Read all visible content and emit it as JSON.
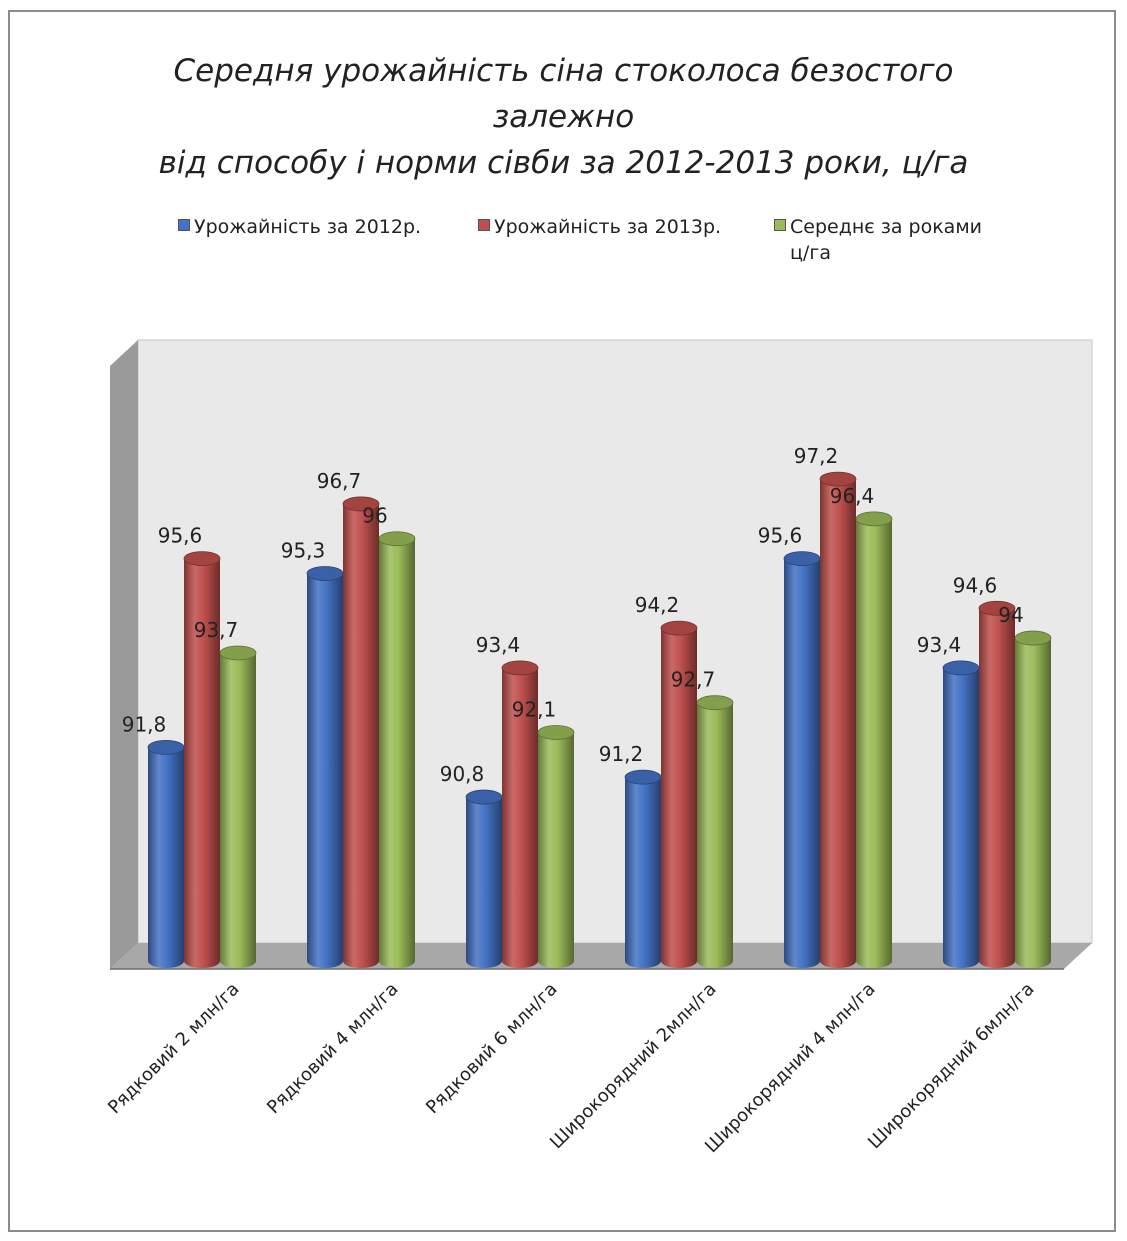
{
  "chart_data": {
    "type": "bar",
    "title_lines": [
      "Середня урожайність сіна стоколоса безостого",
      "залежно",
      "від способу і норми сівби  за 2012-2013 роки, ц/га"
    ],
    "categories": [
      "Рядковий 2 млн/га",
      "Рядковий 4 млн/га",
      "Рядковий 6 млн/га",
      "Широкорядний 2млн/га",
      "Широкорядний 4 млн/га",
      "Широкорядний 6млн/га"
    ],
    "series": [
      {
        "name": "Урожайність за 2012р.",
        "values": [
          91.8,
          95.3,
          90.8,
          91.2,
          95.6,
          93.4
        ],
        "labels": [
          "91,8",
          "95,3",
          "90,8",
          "91,2",
          "95,6",
          "93,4"
        ],
        "color": "#4472c4"
      },
      {
        "name": "Урожайність за 2013р.",
        "values": [
          95.6,
          96.7,
          93.4,
          94.2,
          97.2,
          94.6
        ],
        "labels": [
          "95,6",
          "96,7",
          "93,4",
          "94,2",
          "97,2",
          "94,6"
        ],
        "color": "#c0504d"
      },
      {
        "name": "Середнє за роками ц/га",
        "name_lines": [
          "Середнє за роками",
          "ц/га"
        ],
        "values": [
          93.7,
          96,
          92.1,
          92.7,
          96.4,
          94
        ],
        "labels": [
          "93,7",
          "96",
          "92,1",
          "92,7",
          "96,4",
          "94"
        ],
        "color": "#9bbb59"
      }
    ],
    "ylim": [
      87.5,
      100
    ],
    "grid": false,
    "legend_position": "top",
    "style": "3d-cylinder"
  }
}
